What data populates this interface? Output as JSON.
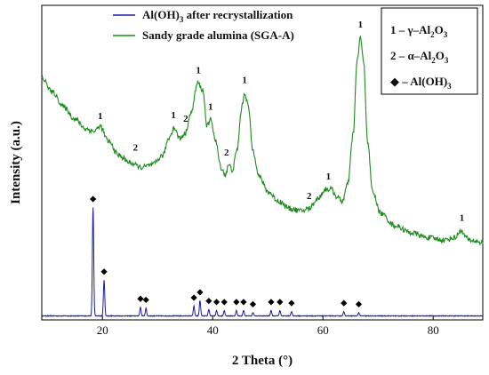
{
  "chart_data": {
    "type": "line",
    "xlabel": "2 Theta (°)",
    "ylabel": "Intensity (a.u.)",
    "xlim": [
      9,
      89
    ],
    "x_ticks": [
      20,
      40,
      60,
      80
    ],
    "legend_placement": "top-left",
    "series": [
      {
        "name": "Al(OH)₃ after recrystallization",
        "color": "#1a1aa6",
        "peaks": [
          [
            18.3,
            1.0
          ],
          [
            20.3,
            0.33
          ],
          [
            26.9,
            0.08
          ],
          [
            27.9,
            0.07
          ],
          [
            36.6,
            0.09
          ],
          [
            37.7,
            0.14
          ],
          [
            39.3,
            0.06
          ],
          [
            40.7,
            0.05
          ],
          [
            42.1,
            0.05
          ],
          [
            44.3,
            0.05
          ],
          [
            45.6,
            0.05
          ],
          [
            47.3,
            0.03
          ],
          [
            50.6,
            0.05
          ],
          [
            52.2,
            0.05
          ],
          [
            54.3,
            0.04
          ],
          [
            63.8,
            0.04
          ],
          [
            66.5,
            0.03
          ]
        ]
      },
      {
        "name": "Sandy grade alumina (SGA-A)",
        "color": "#1f8a1f",
        "points": [
          [
            9,
            0.78
          ],
          [
            11,
            0.72
          ],
          [
            13,
            0.66
          ],
          [
            15,
            0.61
          ],
          [
            17,
            0.57
          ],
          [
            18.5,
            0.56
          ],
          [
            19.6,
            0.58
          ],
          [
            21,
            0.52
          ],
          [
            23,
            0.46
          ],
          [
            25,
            0.43
          ],
          [
            27,
            0.41
          ],
          [
            29,
            0.42
          ],
          [
            31,
            0.46
          ],
          [
            32,
            0.53
          ],
          [
            33,
            0.575
          ],
          [
            34,
            0.53
          ],
          [
            35,
            0.55
          ],
          [
            36,
            0.63
          ],
          [
            37.3,
            0.76
          ],
          [
            38.2,
            0.73
          ],
          [
            39,
            0.58
          ],
          [
            39.7,
            0.61
          ],
          [
            40.5,
            0.52
          ],
          [
            41.5,
            0.41
          ],
          [
            42.3,
            0.38
          ],
          [
            42.9,
            0.42
          ],
          [
            43.6,
            0.4
          ],
          [
            44.4,
            0.48
          ],
          [
            45.3,
            0.66
          ],
          [
            45.8,
            0.72
          ],
          [
            46.4,
            0.67
          ],
          [
            47.3,
            0.48
          ],
          [
            48.5,
            0.37
          ],
          [
            50,
            0.31
          ],
          [
            52,
            0.27
          ],
          [
            54,
            0.24
          ],
          [
            56,
            0.23
          ],
          [
            57.5,
            0.24
          ],
          [
            59,
            0.28
          ],
          [
            60.5,
            0.32
          ],
          [
            61.5,
            0.32
          ],
          [
            62.5,
            0.29
          ],
          [
            63.5,
            0.27
          ],
          [
            64.5,
            0.34
          ],
          [
            65.5,
            0.55
          ],
          [
            66.2,
            0.85
          ],
          [
            66.8,
            0.95
          ],
          [
            67.4,
            0.84
          ],
          [
            68.1,
            0.52
          ],
          [
            69,
            0.31
          ],
          [
            70.5,
            0.22
          ],
          [
            73,
            0.17
          ],
          [
            76,
            0.14
          ],
          [
            79,
            0.12
          ],
          [
            82,
            0.11
          ],
          [
            84,
            0.12
          ],
          [
            85,
            0.15
          ],
          [
            85.6,
            0.13
          ],
          [
            86.5,
            0.11
          ],
          [
            89,
            0.1
          ]
        ]
      }
    ],
    "green_peak_labels": [
      {
        "x": 19.6,
        "y": 0.58,
        "text": "1"
      },
      {
        "x": 26.0,
        "y": 0.45,
        "text": "2"
      },
      {
        "x": 32.9,
        "y": 0.585,
        "text": "1"
      },
      {
        "x": 35.1,
        "y": 0.57,
        "text": "2"
      },
      {
        "x": 37.4,
        "y": 0.77,
        "text": "1"
      },
      {
        "x": 39.6,
        "y": 0.62,
        "text": "1"
      },
      {
        "x": 42.5,
        "y": 0.43,
        "text": "2"
      },
      {
        "x": 45.8,
        "y": 0.73,
        "text": "1"
      },
      {
        "x": 57.5,
        "y": 0.25,
        "text": "2"
      },
      {
        "x": 61.0,
        "y": 0.33,
        "text": "1"
      },
      {
        "x": 66.8,
        "y": 0.96,
        "text": "1"
      },
      {
        "x": 85.2,
        "y": 0.16,
        "text": "1"
      }
    ],
    "phase_key": [
      {
        "prefix": "1 – γ–Al",
        "sub1": "2",
        "mid": "O",
        "sub2": "3"
      },
      {
        "prefix": "2 – α–Al",
        "sub1": "2",
        "mid": "O",
        "sub2": "3"
      },
      {
        "prefix": "◆ – Al(OH)",
        "sub1": "",
        "mid": "",
        "sub2": "3"
      }
    ],
    "legend": [
      {
        "prefix": "Al(OH)",
        "sub": "3",
        "suffix": " after recrystallization",
        "color": "#1a1aa6"
      },
      {
        "prefix": "Sandy grade alumina (SGA-A)",
        "sub": "",
        "suffix": "",
        "color": "#1f8a1f"
      }
    ]
  }
}
